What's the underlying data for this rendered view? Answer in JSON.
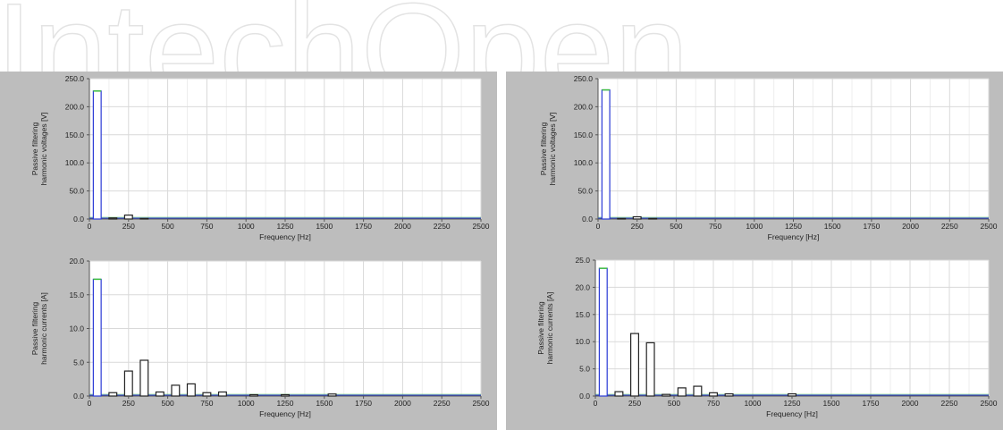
{
  "watermark": {
    "text": "IntechOpen",
    "color": "#e6e6e6"
  },
  "colors": {
    "panel_bg": "#bdbdbd",
    "plot_bg": "#ffffff",
    "grid": "#d9d9d9",
    "series_blue": "#2b3bd6",
    "series_green": "#3fbf3f",
    "series_red": "#d14b4b",
    "series_white": "#ffffff"
  },
  "chart_data": [
    {
      "type": "bar",
      "position": "top-left",
      "xlabel": "Frequency [Hz]",
      "ylabel_line1": "Passive filtering",
      "ylabel_line2": "harmonic voltages [V]",
      "xlim": [
        0,
        2500
      ],
      "ylim": [
        0,
        250
      ],
      "xticks": [
        "0",
        "250",
        "500",
        "750",
        "1000",
        "1250",
        "1500",
        "1750",
        "2000",
        "2250",
        "2500"
      ],
      "yticks": [
        "0.0",
        "50.0",
        "100.0",
        "150.0",
        "200.0",
        "250.0"
      ],
      "bin_width": 50,
      "x": [
        50,
        150,
        250,
        350
      ],
      "values": [
        228,
        2,
        7,
        1
      ],
      "grid": true
    },
    {
      "type": "bar",
      "position": "top-right",
      "xlabel": "Frequency [Hz]",
      "ylabel_line1": "Passive filtering",
      "ylabel_line2": "harmonic voltages [V]",
      "xlim": [
        0,
        2500
      ],
      "ylim": [
        0,
        250
      ],
      "xticks": [
        "0",
        "250",
        "500",
        "750",
        "1000",
        "1250",
        "1500",
        "1750",
        "2000",
        "2250",
        "2500"
      ],
      "yticks": [
        "0.0",
        "50.0",
        "100.0",
        "150.0",
        "200.0",
        "250.0"
      ],
      "bin_width": 50,
      "x": [
        50,
        150,
        250,
        350
      ],
      "values": [
        230,
        1,
        4,
        1
      ],
      "grid": true
    },
    {
      "type": "bar",
      "position": "bottom-left",
      "xlabel": "Frequency [Hz]",
      "ylabel_line1": "Passive filtering",
      "ylabel_line2": "harmonic currents [A]",
      "xlim": [
        0,
        2500
      ],
      "ylim": [
        0,
        20
      ],
      "xticks": [
        "0",
        "250",
        "500",
        "750",
        "1000",
        "1250",
        "1500",
        "1750",
        "2000",
        "2250",
        "2500"
      ],
      "yticks": [
        "0.0",
        "5.0",
        "10.0",
        "15.0",
        "20.0"
      ],
      "bin_width": 50,
      "x": [
        50,
        150,
        250,
        350,
        450,
        550,
        650,
        750,
        850,
        1050,
        1250,
        1550
      ],
      "values": [
        17.3,
        0.5,
        3.7,
        5.3,
        0.6,
        1.6,
        1.8,
        0.5,
        0.6,
        0.2,
        0.2,
        0.3
      ],
      "grid": true
    },
    {
      "type": "bar",
      "position": "bottom-right",
      "xlabel": "Frequency [Hz]",
      "ylabel_line1": "Passive filtering",
      "ylabel_line2": "harmonic currents [A]",
      "xlim": [
        0,
        2500
      ],
      "ylim": [
        0,
        25
      ],
      "xticks": [
        "0",
        "250",
        "500",
        "750",
        "1000",
        "1250",
        "1500",
        "1750",
        "2000",
        "2250",
        "2500"
      ],
      "yticks": [
        "0.0",
        "5.0",
        "10.0",
        "15.0",
        "20.0",
        "25.0"
      ],
      "bin_width": 50,
      "x": [
        50,
        150,
        250,
        350,
        450,
        550,
        650,
        750,
        850,
        1250
      ],
      "values": [
        23.5,
        0.8,
        11.5,
        9.8,
        0.3,
        1.5,
        1.8,
        0.6,
        0.4,
        0.4
      ],
      "grid": true
    }
  ]
}
